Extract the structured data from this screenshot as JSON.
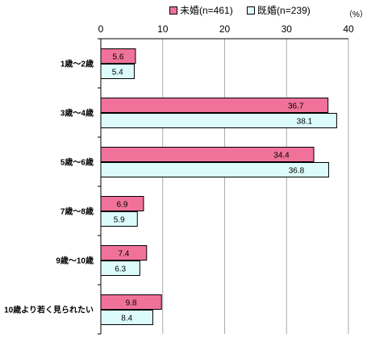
{
  "chart_data": {
    "type": "bar",
    "orientation": "horizontal",
    "unit": "（%）",
    "categories": [
      "1歳～2歳",
      "3歳～4歳",
      "5歳～6歳",
      "7歳～8歳",
      "9歳～10歳",
      "10歳より若く見られたい"
    ],
    "series": [
      {
        "name": "未婚(n=461)",
        "color": "#f0729a",
        "values": [
          5.6,
          36.7,
          34.4,
          6.9,
          7.4,
          9.8
        ]
      },
      {
        "name": "既婚(n=239)",
        "color": "#ddfbfb",
        "values": [
          5.4,
          38.1,
          36.8,
          5.9,
          6.3,
          8.4
        ]
      }
    ],
    "xlim": [
      0,
      40
    ],
    "xticks": [
      "0",
      "10",
      "20",
      "30",
      "40"
    ],
    "grid": "vertical lines",
    "legend": "top"
  }
}
